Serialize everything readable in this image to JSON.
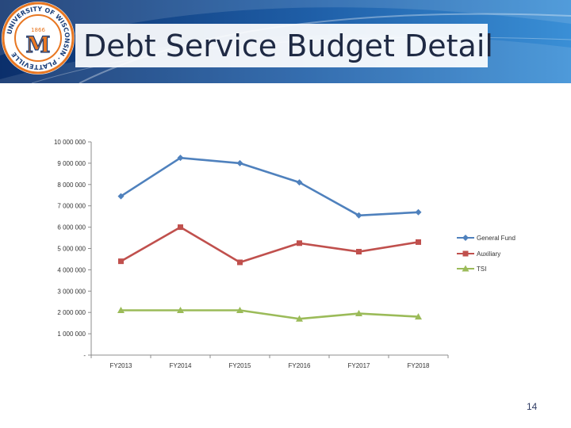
{
  "slide": {
    "title": "Debt Service Budget Detail",
    "page_number": "14",
    "seal_text": "UNIVERSITY OF WISCONSIN · PLATTEVILLE",
    "seal_year": "1866",
    "seal_letter": "M"
  },
  "colors": {
    "banner_dark": "#0b2f6b",
    "banner_light": "#3a8fd6",
    "general_fund": "#4f81bd",
    "auxiliary": "#c0504d",
    "tsi": "#9bbb59",
    "seal_orange": "#e87722",
    "seal_navy": "#1b3f7a"
  },
  "chart_data": {
    "type": "line",
    "title": "",
    "xlabel": "",
    "ylabel": "",
    "categories": [
      "FY2013",
      "FY2014",
      "FY2015",
      "FY2016",
      "FY2017",
      "FY2018"
    ],
    "ylim": [
      0,
      10000000
    ],
    "y_ticks": [
      0,
      1000000,
      2000000,
      3000000,
      4000000,
      5000000,
      6000000,
      7000000,
      8000000,
      9000000,
      10000000
    ],
    "y_tick_labels": [
      "-",
      "1 000 000",
      "2 000 000",
      "3 000 000",
      "4 000 000",
      "5 000 000",
      "6 000 000",
      "7 000 000",
      "8 000 000",
      "9 000 000",
      "10 000 000"
    ],
    "grid": false,
    "legend_position": "right",
    "series": [
      {
        "name": "General Fund",
        "marker": "diamond",
        "color": "#4f81bd",
        "values": [
          7450000,
          9250000,
          9000000,
          8100000,
          6550000,
          6700000
        ]
      },
      {
        "name": "Auxiliary",
        "marker": "square",
        "color": "#c0504d",
        "values": [
          4400000,
          6000000,
          4350000,
          5250000,
          4850000,
          5300000
        ]
      },
      {
        "name": "TSI",
        "marker": "triangle",
        "color": "#9bbb59",
        "values": [
          2100000,
          2100000,
          2100000,
          1700000,
          1950000,
          1800000
        ]
      }
    ]
  }
}
